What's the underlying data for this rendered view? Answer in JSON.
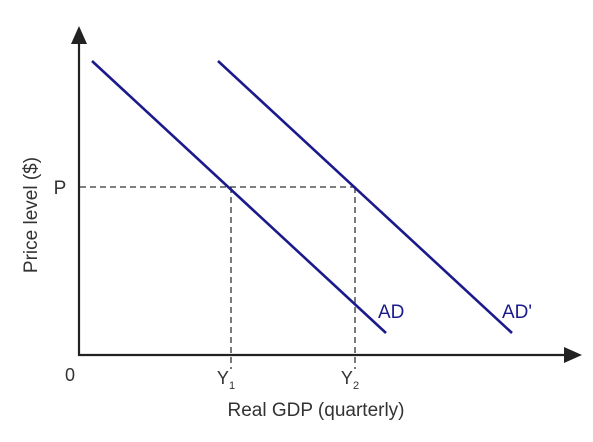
{
  "axes": {
    "y_label": "Price level ($)",
    "x_label": "Real GDP (quarterly)",
    "origin_label": "0"
  },
  "price_marker": "P",
  "output_markers": {
    "y1_main": "Y",
    "y1_sub": "1",
    "y2_main": "Y",
    "y2_sub": "2"
  },
  "curves": {
    "ad_label": "AD",
    "ad_prime_label": "AD'"
  },
  "colors": {
    "curve": "#1a1a8c",
    "axis": "#222222",
    "guide": "#333333",
    "text": "#333333"
  }
}
